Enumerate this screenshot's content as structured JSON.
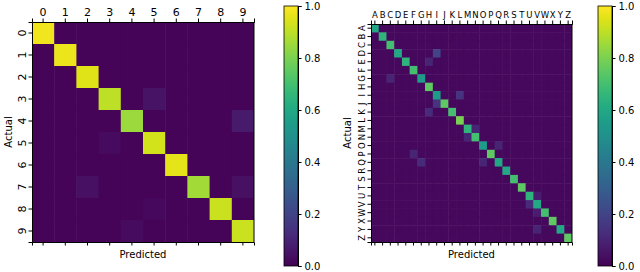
{
  "chart_data": [
    {
      "type": "heatmap",
      "color": "viridis",
      "xlabel": "Predicted",
      "ylabel": "Actual",
      "x_categories": [
        "0",
        "1",
        "2",
        "3",
        "4",
        "5",
        "6",
        "7",
        "8",
        "9"
      ],
      "y_categories": [
        "0",
        "1",
        "2",
        "3",
        "4",
        "5",
        "6",
        "7",
        "8",
        "9"
      ],
      "cells": [
        [
          0.98,
          0.01,
          0.01,
          0.01,
          0.01,
          0.01,
          0.01,
          0.01,
          0.01,
          0.01
        ],
        [
          0.01,
          0.97,
          0.01,
          0.01,
          0.01,
          0.01,
          0.01,
          0.01,
          0.01,
          0.01
        ],
        [
          0.01,
          0.01,
          0.95,
          0.01,
          0.01,
          0.01,
          0.01,
          0.01,
          0.01,
          0.01
        ],
        [
          0.01,
          0.01,
          0.01,
          0.9,
          0.01,
          0.05,
          0.01,
          0.01,
          0.01,
          0.01
        ],
        [
          0.01,
          0.01,
          0.01,
          0.01,
          0.85,
          0.01,
          0.01,
          0.01,
          0.01,
          0.07
        ],
        [
          0.01,
          0.01,
          0.01,
          0.03,
          0.01,
          0.93,
          0.01,
          0.01,
          0.01,
          0.01
        ],
        [
          0.01,
          0.01,
          0.01,
          0.01,
          0.01,
          0.01,
          0.96,
          0.01,
          0.01,
          0.01
        ],
        [
          0.01,
          0.01,
          0.04,
          0.01,
          0.01,
          0.01,
          0.01,
          0.86,
          0.01,
          0.04
        ],
        [
          0.01,
          0.01,
          0.01,
          0.01,
          0.01,
          0.02,
          0.01,
          0.01,
          0.92,
          0.01
        ],
        [
          0.01,
          0.01,
          0.01,
          0.01,
          0.03,
          0.01,
          0.01,
          0.01,
          0.01,
          0.92
        ]
      ],
      "colorbar": {
        "range": [
          0,
          1
        ],
        "ticks": [
          {
            "value": 0,
            "label": "0.0"
          },
          {
            "value": 0.2,
            "label": "0.2"
          },
          {
            "value": 0.4,
            "label": "0.4"
          },
          {
            "value": 0.6,
            "label": "0.6"
          },
          {
            "value": 0.8,
            "label": "0.8"
          },
          {
            "value": 1,
            "label": "1.0"
          }
        ]
      }
    },
    {
      "type": "heatmap",
      "color": "viridis",
      "xlabel": "Predicted",
      "ylabel": "Actual",
      "x_categories": [
        "A",
        "B",
        "C",
        "D",
        "E",
        "F",
        "G",
        "H",
        "I",
        "J",
        "K",
        "L",
        "M",
        "N",
        "O",
        "P",
        "Q",
        "R",
        "S",
        "T",
        "U",
        "V",
        "W",
        "X",
        "Y",
        "Z"
      ],
      "y_categories": [
        "A",
        "B",
        "C",
        "D",
        "E",
        "F",
        "G",
        "H",
        "I",
        "J",
        "K",
        "L",
        "M",
        "N",
        "O",
        "P",
        "Q",
        "R",
        "S",
        "T",
        "U",
        "V",
        "W",
        "X",
        "Y",
        "Z"
      ],
      "cells": [
        [
          0.6,
          0.02,
          0.02,
          0.02,
          0.02,
          0.02,
          0.02,
          0.02,
          0.02,
          0.02,
          0.02,
          0.02,
          0.02,
          0.02,
          0.02,
          0.02,
          0.02,
          0.02,
          0.02,
          0.02,
          0.02,
          0.02,
          0.02,
          0.02,
          0.02,
          0.02
        ],
        [
          0.02,
          0.65,
          0.02,
          0.02,
          0.02,
          0.02,
          0.02,
          0.02,
          0.02,
          0.02,
          0.02,
          0.02,
          0.02,
          0.02,
          0.02,
          0.02,
          0.02,
          0.02,
          0.02,
          0.02,
          0.02,
          0.02,
          0.02,
          0.02,
          0.02,
          0.02
        ],
        [
          0.02,
          0.02,
          0.7,
          0.02,
          0.02,
          0.02,
          0.02,
          0.02,
          0.02,
          0.02,
          0.02,
          0.02,
          0.02,
          0.02,
          0.02,
          0.02,
          0.02,
          0.02,
          0.02,
          0.02,
          0.02,
          0.02,
          0.02,
          0.02,
          0.02,
          0.02
        ],
        [
          0.02,
          0.02,
          0.02,
          0.6,
          0.02,
          0.02,
          0.02,
          0.02,
          0.2,
          0.02,
          0.02,
          0.02,
          0.02,
          0.02,
          0.02,
          0.02,
          0.02,
          0.02,
          0.02,
          0.02,
          0.02,
          0.02,
          0.02,
          0.02,
          0.02,
          0.02
        ],
        [
          0.02,
          0.02,
          0.02,
          0.02,
          0.65,
          0.02,
          0.02,
          0.1,
          0.02,
          0.02,
          0.02,
          0.02,
          0.02,
          0.02,
          0.02,
          0.02,
          0.02,
          0.02,
          0.02,
          0.02,
          0.02,
          0.02,
          0.02,
          0.02,
          0.02,
          0.02
        ],
        [
          0.02,
          0.02,
          0.02,
          0.02,
          0.02,
          0.7,
          0.02,
          0.02,
          0.02,
          0.02,
          0.02,
          0.02,
          0.02,
          0.02,
          0.02,
          0.02,
          0.02,
          0.02,
          0.02,
          0.02,
          0.02,
          0.02,
          0.02,
          0.02,
          0.02,
          0.02
        ],
        [
          0.02,
          0.02,
          0.1,
          0.02,
          0.02,
          0.02,
          0.55,
          0.02,
          0.02,
          0.02,
          0.02,
          0.02,
          0.02,
          0.02,
          0.02,
          0.02,
          0.02,
          0.02,
          0.02,
          0.02,
          0.02,
          0.02,
          0.02,
          0.02,
          0.02,
          0.02
        ],
        [
          0.02,
          0.02,
          0.02,
          0.02,
          0.02,
          0.02,
          0.02,
          0.75,
          0.02,
          0.02,
          0.02,
          0.02,
          0.02,
          0.02,
          0.02,
          0.02,
          0.02,
          0.02,
          0.02,
          0.02,
          0.02,
          0.02,
          0.02,
          0.02,
          0.02,
          0.02
        ],
        [
          0.02,
          0.02,
          0.02,
          0.02,
          0.02,
          0.02,
          0.02,
          0.02,
          0.55,
          0.02,
          0.02,
          0.15,
          0.02,
          0.02,
          0.02,
          0.02,
          0.02,
          0.02,
          0.02,
          0.02,
          0.02,
          0.02,
          0.02,
          0.02,
          0.02,
          0.02
        ],
        [
          0.02,
          0.02,
          0.02,
          0.02,
          0.02,
          0.02,
          0.02,
          0.02,
          0.15,
          0.75,
          0.02,
          0.02,
          0.02,
          0.02,
          0.02,
          0.02,
          0.02,
          0.02,
          0.02,
          0.02,
          0.02,
          0.02,
          0.02,
          0.02,
          0.02,
          0.02
        ],
        [
          0.02,
          0.02,
          0.02,
          0.02,
          0.02,
          0.02,
          0.02,
          0.12,
          0.02,
          0.02,
          0.7,
          0.02,
          0.02,
          0.02,
          0.02,
          0.02,
          0.02,
          0.02,
          0.02,
          0.02,
          0.02,
          0.02,
          0.02,
          0.02,
          0.02,
          0.02
        ],
        [
          0.02,
          0.02,
          0.02,
          0.02,
          0.02,
          0.02,
          0.02,
          0.02,
          0.02,
          0.02,
          0.02,
          0.8,
          0.02,
          0.02,
          0.02,
          0.02,
          0.02,
          0.02,
          0.02,
          0.02,
          0.02,
          0.02,
          0.02,
          0.02,
          0.02,
          0.02
        ],
        [
          0.02,
          0.02,
          0.02,
          0.02,
          0.02,
          0.02,
          0.02,
          0.02,
          0.02,
          0.02,
          0.02,
          0.02,
          0.65,
          0.1,
          0.02,
          0.02,
          0.02,
          0.02,
          0.02,
          0.02,
          0.02,
          0.02,
          0.02,
          0.02,
          0.02,
          0.02
        ],
        [
          0.02,
          0.02,
          0.02,
          0.02,
          0.02,
          0.02,
          0.02,
          0.02,
          0.02,
          0.02,
          0.02,
          0.02,
          0.1,
          0.7,
          0.02,
          0.02,
          0.02,
          0.02,
          0.02,
          0.02,
          0.02,
          0.02,
          0.02,
          0.02,
          0.02,
          0.02
        ],
        [
          0.02,
          0.02,
          0.02,
          0.02,
          0.02,
          0.02,
          0.02,
          0.02,
          0.02,
          0.02,
          0.02,
          0.02,
          0.02,
          0.02,
          0.55,
          0.02,
          0.1,
          0.02,
          0.02,
          0.02,
          0.02,
          0.02,
          0.02,
          0.02,
          0.02,
          0.02
        ],
        [
          0.02,
          0.02,
          0.02,
          0.02,
          0.02,
          0.1,
          0.02,
          0.02,
          0.02,
          0.02,
          0.02,
          0.02,
          0.02,
          0.02,
          0.02,
          0.75,
          0.02,
          0.02,
          0.02,
          0.02,
          0.02,
          0.02,
          0.02,
          0.02,
          0.02,
          0.02
        ],
        [
          0.02,
          0.02,
          0.02,
          0.02,
          0.02,
          0.02,
          0.12,
          0.02,
          0.02,
          0.02,
          0.02,
          0.02,
          0.02,
          0.02,
          0.1,
          0.02,
          0.6,
          0.02,
          0.02,
          0.02,
          0.02,
          0.02,
          0.02,
          0.02,
          0.02,
          0.02
        ],
        [
          0.02,
          0.02,
          0.02,
          0.02,
          0.02,
          0.02,
          0.02,
          0.02,
          0.02,
          0.02,
          0.02,
          0.02,
          0.02,
          0.02,
          0.02,
          0.02,
          0.02,
          0.6,
          0.02,
          0.02,
          0.02,
          0.02,
          0.02,
          0.02,
          0.02,
          0.02
        ],
        [
          0.02,
          0.02,
          0.02,
          0.02,
          0.02,
          0.02,
          0.02,
          0.02,
          0.02,
          0.02,
          0.02,
          0.02,
          0.02,
          0.02,
          0.02,
          0.02,
          0.02,
          0.02,
          0.7,
          0.02,
          0.02,
          0.02,
          0.02,
          0.02,
          0.02,
          0.02
        ],
        [
          0.02,
          0.02,
          0.02,
          0.02,
          0.02,
          0.02,
          0.02,
          0.02,
          0.02,
          0.02,
          0.02,
          0.02,
          0.02,
          0.02,
          0.02,
          0.02,
          0.02,
          0.02,
          0.02,
          0.75,
          0.02,
          0.02,
          0.02,
          0.02,
          0.02,
          0.02
        ],
        [
          0.02,
          0.02,
          0.02,
          0.02,
          0.02,
          0.02,
          0.02,
          0.02,
          0.02,
          0.02,
          0.02,
          0.02,
          0.02,
          0.02,
          0.02,
          0.02,
          0.02,
          0.02,
          0.02,
          0.02,
          0.65,
          0.08,
          0.02,
          0.02,
          0.02,
          0.02
        ],
        [
          0.02,
          0.02,
          0.02,
          0.02,
          0.02,
          0.02,
          0.02,
          0.02,
          0.02,
          0.02,
          0.02,
          0.02,
          0.02,
          0.02,
          0.02,
          0.02,
          0.02,
          0.02,
          0.02,
          0.02,
          0.12,
          0.6,
          0.02,
          0.02,
          0.02,
          0.02
        ],
        [
          0.02,
          0.02,
          0.02,
          0.02,
          0.02,
          0.02,
          0.02,
          0.02,
          0.02,
          0.02,
          0.02,
          0.02,
          0.02,
          0.02,
          0.02,
          0.02,
          0.02,
          0.02,
          0.02,
          0.02,
          0.02,
          0.08,
          0.7,
          0.02,
          0.02,
          0.02
        ],
        [
          0.02,
          0.02,
          0.02,
          0.02,
          0.02,
          0.02,
          0.02,
          0.02,
          0.02,
          0.02,
          0.02,
          0.02,
          0.02,
          0.02,
          0.02,
          0.02,
          0.02,
          0.02,
          0.02,
          0.02,
          0.02,
          0.02,
          0.02,
          0.75,
          0.02,
          0.02
        ],
        [
          0.02,
          0.02,
          0.02,
          0.02,
          0.02,
          0.02,
          0.02,
          0.02,
          0.02,
          0.02,
          0.02,
          0.02,
          0.02,
          0.02,
          0.02,
          0.02,
          0.02,
          0.02,
          0.02,
          0.02,
          0.02,
          0.1,
          0.02,
          0.02,
          0.6,
          0.02
        ],
        [
          0.02,
          0.02,
          0.02,
          0.02,
          0.02,
          0.02,
          0.02,
          0.02,
          0.02,
          0.02,
          0.02,
          0.02,
          0.02,
          0.02,
          0.02,
          0.02,
          0.02,
          0.02,
          0.02,
          0.02,
          0.02,
          0.02,
          0.02,
          0.02,
          0.02,
          0.75
        ]
      ],
      "colorbar": {
        "range": [
          0,
          1
        ],
        "ticks": [
          {
            "value": 0,
            "label": "0.0"
          },
          {
            "value": 0.2,
            "label": "0.2"
          },
          {
            "value": 0.4,
            "label": "0.4"
          },
          {
            "value": 0.6,
            "label": "0.6"
          },
          {
            "value": 0.8,
            "label": "0.8"
          },
          {
            "value": 1,
            "label": "1.0"
          }
        ]
      }
    }
  ]
}
